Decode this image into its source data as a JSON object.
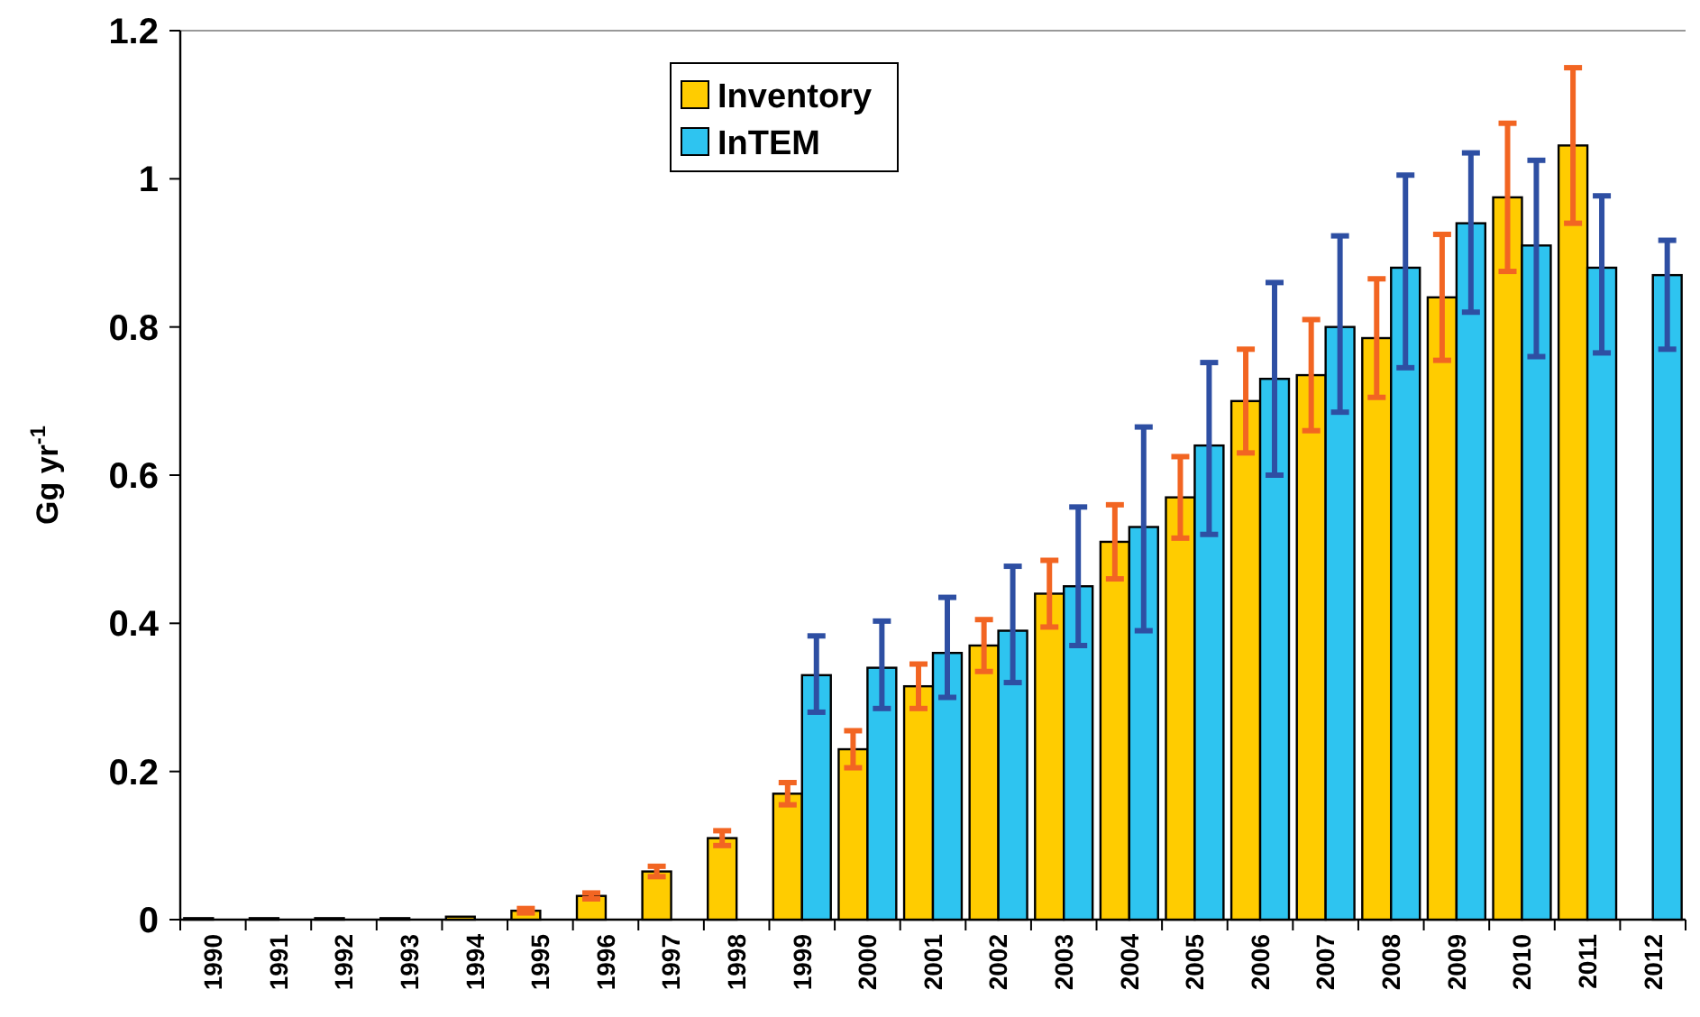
{
  "chart_data": {
    "type": "bar",
    "ylabel": "Gg yr$^{-1}$",
    "categories": [
      "1990",
      "1991",
      "1992",
      "1993",
      "1994",
      "1995",
      "1996",
      "1997",
      "1998",
      "1999",
      "2000",
      "2001",
      "2002",
      "2003",
      "2004",
      "2005",
      "2006",
      "2007",
      "2008",
      "2009",
      "2010",
      "2011",
      "2012"
    ],
    "series": [
      {
        "name": "Inventory",
        "color": "#ffcc00",
        "values": [
          0.002,
          0.002,
          0.002,
          0.002,
          0.004,
          0.012,
          0.032,
          0.065,
          0.11,
          0.17,
          0.23,
          0.315,
          0.37,
          0.44,
          0.51,
          0.57,
          0.7,
          0.735,
          0.785,
          0.84,
          0.975,
          1.045,
          null
        ],
        "errors": [
          null,
          null,
          null,
          null,
          null,
          0.003,
          0.004,
          0.007,
          0.01,
          0.015,
          0.025,
          0.03,
          0.035,
          0.045,
          0.05,
          0.055,
          0.07,
          0.075,
          0.08,
          0.085,
          0.1,
          0.105,
          null
        ]
      },
      {
        "name": "InTEM",
        "color": "#2ec4f0",
        "values": [
          null,
          null,
          null,
          null,
          null,
          null,
          null,
          null,
          null,
          0.33,
          0.34,
          0.36,
          0.39,
          0.45,
          0.53,
          0.64,
          0.73,
          0.8,
          0.88,
          0.94,
          0.91,
          0.88,
          0.87
        ],
        "errors": [
          null,
          null,
          null,
          null,
          null,
          null,
          null,
          null,
          null,
          [
            0.28,
            0.383
          ],
          [
            0.285,
            0.403
          ],
          [
            0.3,
            0.435
          ],
          [
            0.32,
            0.477
          ],
          [
            0.37,
            0.557
          ],
          [
            0.39,
            0.665
          ],
          [
            0.52,
            0.752
          ],
          [
            0.6,
            0.86
          ],
          [
            0.685,
            0.923
          ],
          [
            0.745,
            1.005
          ],
          [
            0.82,
            1.035
          ],
          [
            0.76,
            1.025
          ],
          [
            0.765,
            0.977
          ],
          [
            0.77,
            0.917
          ]
        ]
      }
    ],
    "ylim": [
      0,
      1.2
    ],
    "yticks": [
      0,
      0.2,
      0.4,
      0.6,
      0.8,
      1,
      1.2
    ],
    "grid": false,
    "legend": "top"
  }
}
